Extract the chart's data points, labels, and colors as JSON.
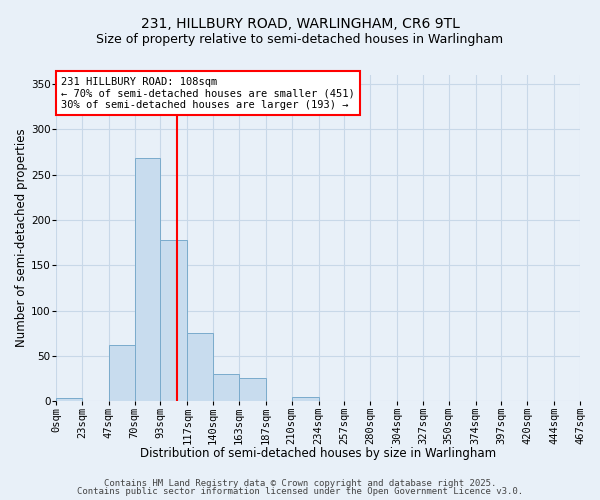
{
  "title": "231, HILLBURY ROAD, WARLINGHAM, CR6 9TL",
  "subtitle": "Size of property relative to semi-detached houses in Warlingham",
  "xlabel": "Distribution of semi-detached houses by size in Warlingham",
  "ylabel": "Number of semi-detached properties",
  "bin_edges": [
    0,
    23,
    47,
    70,
    93,
    117,
    140,
    163,
    187,
    210,
    234,
    257,
    280,
    304,
    327,
    350,
    374,
    397,
    420,
    444,
    467
  ],
  "bin_labels": [
    "0sqm",
    "23sqm",
    "47sqm",
    "70sqm",
    "93sqm",
    "117sqm",
    "140sqm",
    "163sqm",
    "187sqm",
    "210sqm",
    "234sqm",
    "257sqm",
    "280sqm",
    "304sqm",
    "327sqm",
    "350sqm",
    "374sqm",
    "397sqm",
    "420sqm",
    "444sqm",
    "467sqm"
  ],
  "counts": [
    3,
    0,
    62,
    268,
    178,
    75,
    30,
    26,
    0,
    5,
    0,
    0,
    0,
    0,
    0,
    0,
    0,
    0,
    0,
    0
  ],
  "bar_facecolor": "#c8dcee",
  "bar_edgecolor": "#7aabcc",
  "grid_color": "#c8d8e8",
  "bg_color": "#e8f0f8",
  "vline_x": 108,
  "vline_color": "red",
  "annotation_title": "231 HILLBURY ROAD: 108sqm",
  "annotation_line2": "← 70% of semi-detached houses are smaller (451)",
  "annotation_line3": "30% of semi-detached houses are larger (193) →",
  "ylim": [
    0,
    360
  ],
  "yticks": [
    0,
    50,
    100,
    150,
    200,
    250,
    300,
    350
  ],
  "footer1": "Contains HM Land Registry data © Crown copyright and database right 2025.",
  "footer2": "Contains public sector information licensed under the Open Government Licence v3.0.",
  "title_fontsize": 10,
  "subtitle_fontsize": 9,
  "axis_label_fontsize": 8.5,
  "tick_fontsize": 7.5,
  "annotation_fontsize": 7.5,
  "footer_fontsize": 6.5
}
